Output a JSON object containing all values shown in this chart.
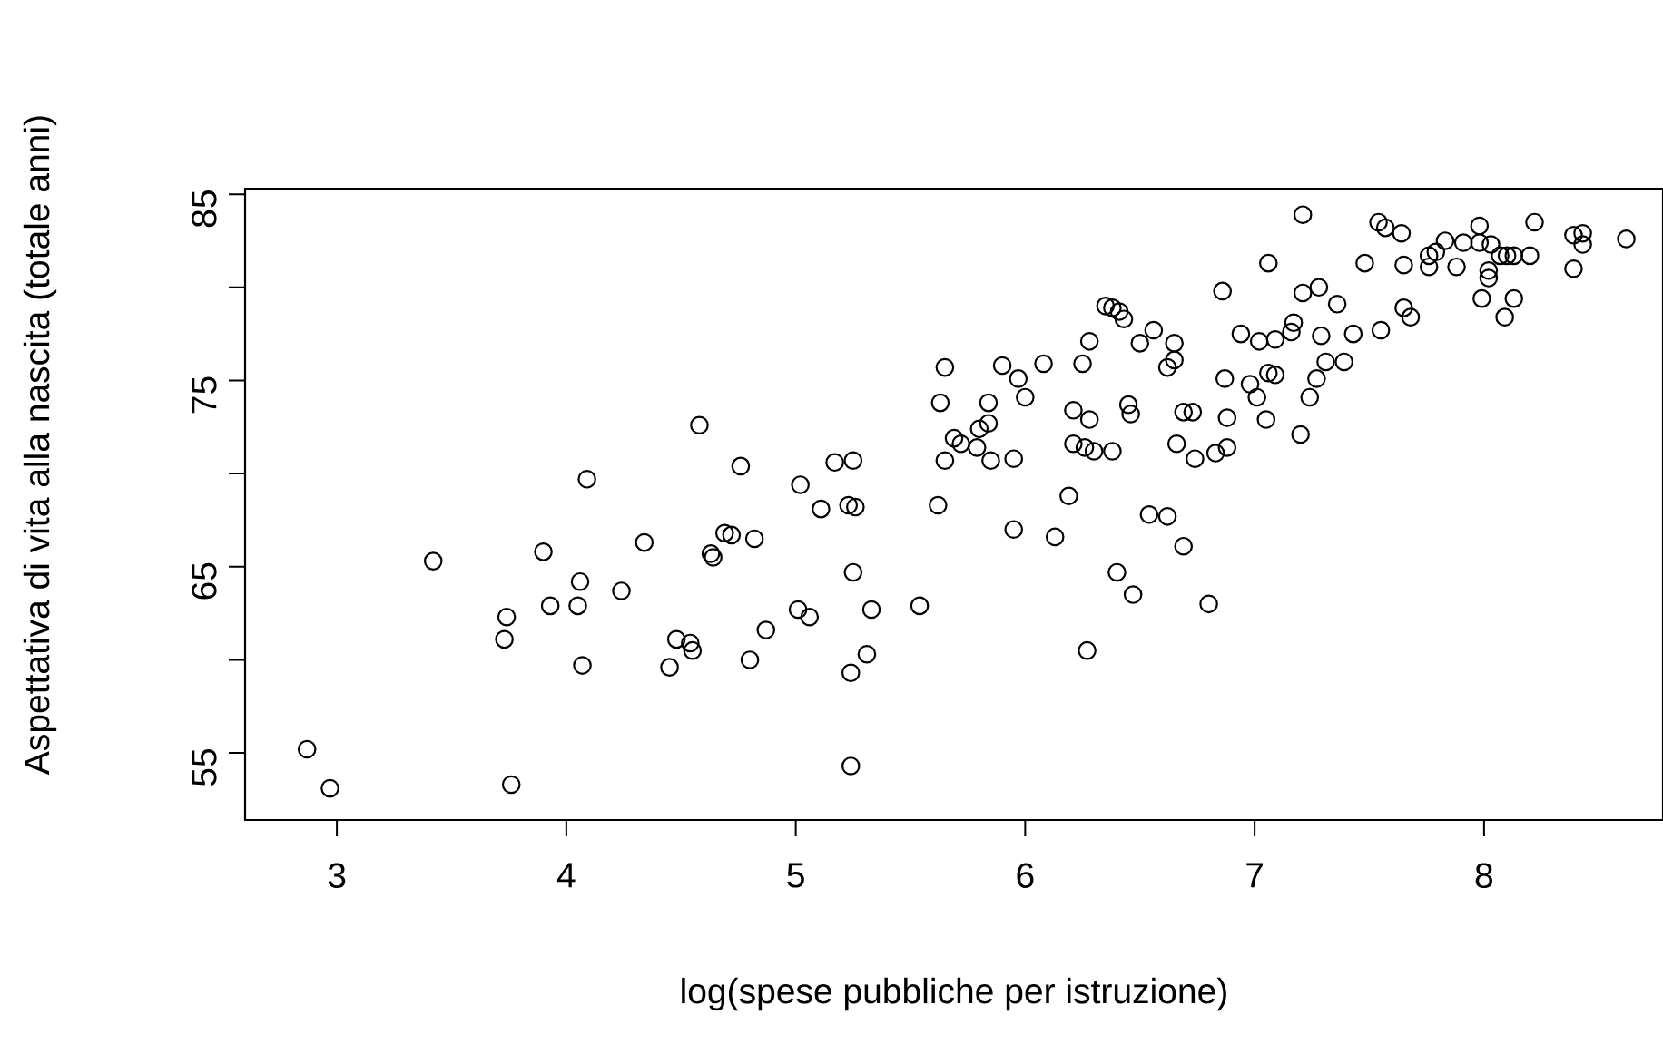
{
  "chart_data": {
    "type": "scatter",
    "xlabel": "log(spese pubbliche per istruzione)",
    "ylabel": "Aspettativa di vita alla nascita (totale anni)",
    "color": "#000000",
    "marker": "circle",
    "grid": false,
    "xlim": [
      2.6,
      8.78
    ],
    "ylim": [
      51.4,
      85.3
    ],
    "xticks": [
      3,
      4,
      5,
      6,
      7,
      8
    ],
    "yticks": [
      55,
      {
        "value": 60,
        "label": null
      },
      65,
      {
        "value": 70,
        "label": null
      },
      75,
      {
        "value": 80,
        "label": null
      },
      85
    ],
    "x": [
      2.87,
      2.97,
      3.42,
      3.74,
      3.73,
      3.76,
      3.9,
      3.93,
      4.06,
      4.05,
      4.07,
      4.09,
      4.24,
      4.34,
      4.45,
      4.48,
      4.54,
      4.55,
      4.58,
      4.63,
      4.64,
      4.69,
      4.72,
      4.76,
      4.82,
      4.8,
      4.87,
      5.02,
      5.01,
      5.06,
      5.11,
      5.17,
      5.25,
      5.23,
      5.26,
      5.25,
      5.24,
      5.31,
      5.33,
      5.24,
      5.54,
      5.62,
      5.65,
      5.63,
      5.69,
      5.65,
      5.72,
      5.79,
      5.8,
      5.84,
      5.84,
      5.85,
      5.9,
      5.97,
      6.0,
      5.95,
      6.08,
      5.95,
      6.13,
      6.19,
      6.21,
      6.28,
      6.21,
      6.26,
      6.3,
      6.38,
      6.25,
      6.28,
      6.35,
      6.38,
      6.41,
      6.43,
      6.45,
      6.46,
      6.56,
      6.5,
      6.65,
      6.65,
      6.62,
      6.69,
      6.73,
      6.66,
      6.74,
      6.54,
      6.62,
      6.69,
      6.4,
      6.47,
      6.8,
      6.27,
      6.83,
      6.88,
      6.88,
      6.87,
      6.86,
      6.94,
      7.02,
      7.09,
      7.16,
      7.17,
      7.06,
      6.98,
      7.01,
      7.05,
      7.06,
      7.09,
      7.2,
      7.24,
      7.27,
      7.29,
      7.31,
      7.39,
      7.43,
      7.55,
      7.21,
      7.28,
      7.36,
      7.65,
      7.68,
      7.21,
      7.48,
      7.54,
      7.57,
      7.64,
      7.65,
      7.76,
      7.79,
      7.83,
      7.76,
      7.88,
      7.91,
      7.98,
      7.98,
      8.03,
      8.02,
      8.02,
      8.07,
      8.1,
      8.13,
      8.2,
      8.22,
      8.39,
      8.43,
      8.43,
      8.39,
      8.62,
      7.99,
      8.13,
      8.09
    ],
    "values": [
      55.2,
      53.1,
      65.3,
      62.3,
      61.1,
      53.3,
      65.8,
      62.9,
      64.2,
      62.9,
      59.7,
      69.7,
      63.7,
      66.3,
      59.6,
      61.1,
      60.9,
      60.5,
      72.6,
      65.7,
      65.5,
      66.8,
      66.7,
      70.4,
      66.5,
      60.0,
      61.6,
      69.4,
      62.7,
      62.3,
      68.1,
      70.6,
      70.7,
      68.3,
      68.2,
      64.7,
      59.3,
      60.3,
      62.7,
      54.3,
      62.9,
      68.3,
      75.7,
      73.8,
      71.9,
      70.7,
      71.6,
      71.4,
      72.4,
      73.8,
      72.7,
      70.7,
      75.8,
      75.1,
      74.1,
      70.8,
      75.9,
      67.0,
      66.6,
      68.8,
      73.4,
      72.9,
      71.6,
      71.4,
      71.2,
      71.2,
      75.9,
      77.1,
      79.0,
      78.9,
      78.7,
      78.3,
      73.7,
      73.2,
      77.7,
      77.0,
      77.0,
      76.1,
      75.7,
      73.3,
      73.3,
      71.6,
      70.8,
      67.8,
      67.7,
      66.1,
      64.7,
      63.5,
      63.0,
      60.5,
      71.1,
      71.4,
      73.0,
      75.1,
      79.8,
      77.5,
      77.1,
      77.2,
      77.6,
      78.1,
      81.3,
      74.8,
      74.1,
      72.9,
      75.4,
      75.3,
      72.1,
      74.1,
      75.1,
      77.4,
      76.0,
      76.0,
      77.5,
      77.7,
      79.7,
      80.0,
      79.1,
      78.9,
      78.4,
      83.9,
      81.3,
      83.5,
      83.2,
      82.9,
      81.2,
      81.7,
      81.9,
      82.5,
      81.1,
      81.1,
      82.4,
      83.3,
      82.4,
      82.3,
      80.9,
      80.5,
      81.7,
      81.7,
      81.7,
      81.7,
      83.5,
      82.8,
      82.9,
      82.3,
      81.0,
      82.6,
      79.4,
      79.4,
      78.4
    ]
  }
}
